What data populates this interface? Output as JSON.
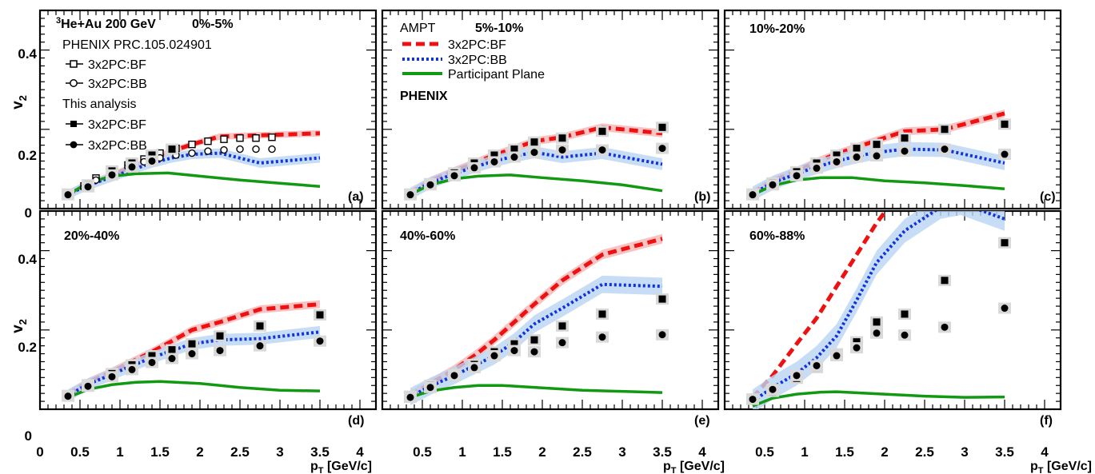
{
  "figure": {
    "y_axis_label": "v",
    "y_axis_sub": "2",
    "x_axis_label": "p",
    "x_axis_sub": "T",
    "x_axis_unit": " [GeV/c]",
    "x_ticks": [
      "0",
      "0.5",
      "1",
      "1.5",
      "2",
      "2.5",
      "3",
      "3.5",
      "4"
    ],
    "y_ticks": [
      "0",
      "0.2",
      "0.4"
    ]
  },
  "legend": {
    "system_sup": "3",
    "system": "He+Au 200 GeV",
    "phenix_ref": "PHENIX PRC.105.024901",
    "phenix_bf": "3x2PC:BF",
    "phenix_bb": "3x2PC:BB",
    "analysis_title": "This analysis",
    "analysis_bf": "3x2PC:BF",
    "analysis_bb": "3x2PC:BB",
    "ampt_title": "AMPT",
    "ampt_bf": "3x2PC:BF",
    "ampt_bb": "3x2PC:BB",
    "ampt_pp": "Participant Plane",
    "phenix_label": "PHENIX"
  },
  "colors": {
    "bf": "#ee1111",
    "bb": "#1133dd",
    "pp": "#119911",
    "bf_band": "#f6b4b4",
    "bb_band": "#b9d4f2",
    "syst": "#d9d9d9"
  },
  "chart_data": [
    {
      "type": "line",
      "panel": "(a)",
      "centrality": "0%-5%",
      "xlim": [
        0,
        4.2
      ],
      "ylim": [
        0,
        0.5
      ],
      "series": [
        {
          "name": "AMPT 3x2PC:BF",
          "style": "dashed",
          "x": [
            0.35,
            0.5,
            0.65,
            0.9,
            1.15,
            1.4,
            1.65,
            1.9,
            2.25,
            2.75,
            3.5
          ],
          "y": [
            0.037,
            0.052,
            0.065,
            0.085,
            0.105,
            0.125,
            0.145,
            0.162,
            0.182,
            0.185,
            0.19
          ],
          "band": 0.008
        },
        {
          "name": "AMPT 3x2PC:BB",
          "style": "dotted",
          "x": [
            0.35,
            0.5,
            0.65,
            0.9,
            1.15,
            1.4,
            1.65,
            1.9,
            2.25,
            2.75,
            3.5
          ],
          "y": [
            0.035,
            0.05,
            0.062,
            0.08,
            0.098,
            0.115,
            0.128,
            0.137,
            0.14,
            0.115,
            0.128
          ],
          "band": 0.012
        },
        {
          "name": "AMPT Participant Plane",
          "style": "solid",
          "x": [
            0.35,
            0.6,
            0.9,
            1.2,
            1.6,
            2.0,
            2.5,
            3.0,
            3.5
          ],
          "y": [
            0.035,
            0.065,
            0.082,
            0.088,
            0.09,
            0.082,
            0.072,
            0.064,
            0.056
          ]
        },
        {
          "name": "PHENIX 3x2PC:BF",
          "marker": "open-square",
          "x": [
            0.35,
            0.55,
            0.7,
            0.9,
            1.1,
            1.3,
            1.5,
            1.7,
            1.9,
            2.1,
            2.3,
            2.5,
            2.7,
            2.9
          ],
          "y": [
            0.037,
            0.057,
            0.077,
            0.095,
            0.11,
            0.125,
            0.14,
            0.152,
            0.162,
            0.17,
            0.175,
            0.178,
            0.178,
            0.18
          ]
        },
        {
          "name": "PHENIX 3x2PC:BB",
          "marker": "open-circle",
          "x": [
            0.35,
            0.55,
            0.7,
            0.9,
            1.1,
            1.3,
            1.5,
            1.7,
            1.9,
            2.1,
            2.3,
            2.5,
            2.7,
            2.9
          ],
          "y": [
            0.035,
            0.053,
            0.072,
            0.09,
            0.105,
            0.118,
            0.128,
            0.135,
            0.14,
            0.145,
            0.148,
            0.15,
            0.15,
            0.15
          ]
        },
        {
          "name": "This analysis 3x2PC:BF",
          "marker": "filled-square",
          "x": [
            0.35,
            0.6,
            0.9,
            1.15,
            1.4,
            1.65
          ],
          "y": [
            0.037,
            0.06,
            0.095,
            0.115,
            0.135,
            0.15
          ]
        },
        {
          "name": "This analysis 3x2PC:BB",
          "marker": "filled-circle",
          "x": [
            0.35,
            0.6,
            0.9,
            1.15,
            1.4
          ],
          "y": [
            0.035,
            0.055,
            0.085,
            0.105,
            0.12
          ]
        }
      ]
    },
    {
      "type": "line",
      "panel": "(b)",
      "centrality": "5%-10%",
      "xlim": [
        0,
        4.2
      ],
      "ylim": [
        0,
        0.5
      ],
      "series": [
        {
          "name": "AMPT 3x2PC:BF",
          "style": "dashed",
          "x": [
            0.35,
            0.6,
            0.9,
            1.15,
            1.4,
            1.65,
            1.9,
            2.25,
            2.75,
            3.5
          ],
          "y": [
            0.04,
            0.07,
            0.095,
            0.115,
            0.135,
            0.152,
            0.17,
            0.18,
            0.205,
            0.19
          ],
          "band": 0.01
        },
        {
          "name": "AMPT 3x2PC:BB",
          "style": "dotted",
          "x": [
            0.35,
            0.6,
            0.9,
            1.15,
            1.4,
            1.65,
            1.9,
            2.25,
            2.75,
            3.5
          ],
          "y": [
            0.038,
            0.065,
            0.088,
            0.105,
            0.12,
            0.132,
            0.142,
            0.13,
            0.14,
            0.112
          ],
          "band": 0.015
        },
        {
          "name": "AMPT Participant Plane",
          "style": "solid",
          "x": [
            0.35,
            0.6,
            0.9,
            1.2,
            1.6,
            2.0,
            2.5,
            3.0,
            3.5
          ],
          "y": [
            0.036,
            0.06,
            0.075,
            0.082,
            0.085,
            0.078,
            0.07,
            0.06,
            0.045
          ]
        },
        {
          "name": "This analysis 3x2PC:BF",
          "marker": "filled-square",
          "x": [
            0.35,
            0.6,
            0.9,
            1.15,
            1.4,
            1.65,
            1.9,
            2.25,
            2.75,
            3.5
          ],
          "y": [
            0.037,
            0.063,
            0.09,
            0.115,
            0.135,
            0.15,
            0.168,
            0.178,
            0.195,
            0.205
          ]
        },
        {
          "name": "This analysis 3x2PC:BB",
          "marker": "filled-circle",
          "x": [
            0.35,
            0.6,
            0.9,
            1.15,
            1.4,
            1.65,
            1.9,
            2.25,
            2.75,
            3.5
          ],
          "y": [
            0.035,
            0.06,
            0.083,
            0.103,
            0.118,
            0.13,
            0.142,
            0.148,
            0.148,
            0.152
          ]
        }
      ]
    },
    {
      "type": "line",
      "panel": "(c)",
      "centrality": "10%-20%",
      "xlim": [
        0,
        4.2
      ],
      "ylim": [
        0,
        0.5
      ],
      "series": [
        {
          "name": "AMPT 3x2PC:BF",
          "style": "dashed",
          "x": [
            0.35,
            0.6,
            0.9,
            1.15,
            1.4,
            1.65,
            1.9,
            2.25,
            2.75,
            3.5
          ],
          "y": [
            0.04,
            0.07,
            0.095,
            0.118,
            0.138,
            0.155,
            0.172,
            0.195,
            0.2,
            0.24
          ],
          "band": 0.01
        },
        {
          "name": "AMPT 3x2PC:BB",
          "style": "dotted",
          "x": [
            0.35,
            0.6,
            0.9,
            1.15,
            1.4,
            1.65,
            1.9,
            2.25,
            2.75,
            3.5
          ],
          "y": [
            0.038,
            0.065,
            0.088,
            0.105,
            0.12,
            0.132,
            0.142,
            0.15,
            0.148,
            0.115
          ],
          "band": 0.018
        },
        {
          "name": "AMPT Participant Plane",
          "style": "solid",
          "x": [
            0.35,
            0.6,
            0.9,
            1.2,
            1.6,
            2.0,
            2.5,
            3.0,
            3.5
          ],
          "y": [
            0.035,
            0.058,
            0.072,
            0.078,
            0.078,
            0.07,
            0.065,
            0.058,
            0.05
          ]
        },
        {
          "name": "This analysis 3x2PC:BF",
          "marker": "filled-square",
          "x": [
            0.35,
            0.6,
            0.9,
            1.15,
            1.4,
            1.65,
            1.9,
            2.25,
            2.75,
            3.5
          ],
          "y": [
            0.037,
            0.065,
            0.093,
            0.115,
            0.135,
            0.152,
            0.162,
            0.178,
            0.2,
            0.213
          ]
        },
        {
          "name": "This analysis 3x2PC:BB",
          "marker": "filled-circle",
          "x": [
            0.35,
            0.6,
            0.9,
            1.15,
            1.4,
            1.65,
            1.9,
            2.25,
            2.75,
            3.5
          ],
          "y": [
            0.035,
            0.06,
            0.083,
            0.102,
            0.118,
            0.13,
            0.133,
            0.145,
            0.15,
            0.137
          ]
        }
      ]
    },
    {
      "type": "line",
      "panel": "(d)",
      "centrality": "20%-40%",
      "xlim": [
        0,
        4.2
      ],
      "ylim": [
        0,
        0.5
      ],
      "series": [
        {
          "name": "AMPT 3x2PC:BF",
          "style": "dashed",
          "x": [
            0.35,
            0.6,
            0.9,
            1.15,
            1.4,
            1.65,
            1.9,
            2.25,
            2.75,
            3.5
          ],
          "y": [
            0.038,
            0.068,
            0.095,
            0.12,
            0.145,
            0.172,
            0.2,
            0.22,
            0.252,
            0.265
          ],
          "band": 0.01
        },
        {
          "name": "AMPT 3x2PC:BB",
          "style": "dotted",
          "x": [
            0.35,
            0.6,
            0.9,
            1.15,
            1.4,
            1.65,
            1.9,
            2.25,
            2.75,
            3.5
          ],
          "y": [
            0.035,
            0.063,
            0.088,
            0.11,
            0.13,
            0.148,
            0.165,
            0.175,
            0.178,
            0.195
          ],
          "band": 0.015
        },
        {
          "name": "AMPT Participant Plane",
          "style": "solid",
          "x": [
            0.35,
            0.6,
            0.9,
            1.2,
            1.5,
            2.0,
            2.5,
            3.0,
            3.5
          ],
          "y": [
            0.03,
            0.05,
            0.062,
            0.068,
            0.07,
            0.065,
            0.055,
            0.048,
            0.046
          ]
        },
        {
          "name": "This analysis 3x2PC:BF",
          "marker": "filled-square",
          "x": [
            0.35,
            0.6,
            0.9,
            1.15,
            1.4,
            1.65,
            1.9,
            2.25,
            2.75,
            3.5
          ],
          "y": [
            0.035,
            0.062,
            0.09,
            0.112,
            0.135,
            0.15,
            0.165,
            0.185,
            0.21,
            0.238
          ]
        },
        {
          "name": "This analysis 3x2PC:BB",
          "marker": "filled-circle",
          "x": [
            0.35,
            0.6,
            0.9,
            1.15,
            1.4,
            1.65,
            1.9,
            2.25,
            2.75,
            3.5
          ],
          "y": [
            0.033,
            0.058,
            0.082,
            0.1,
            0.118,
            0.128,
            0.14,
            0.148,
            0.16,
            0.172
          ]
        }
      ]
    },
    {
      "type": "line",
      "panel": "(e)",
      "centrality": "40%-60%",
      "xlim": [
        0,
        4.2
      ],
      "ylim": [
        0,
        0.5
      ],
      "series": [
        {
          "name": "AMPT 3x2PC:BF",
          "style": "dashed",
          "x": [
            0.35,
            0.6,
            0.9,
            1.15,
            1.4,
            1.65,
            1.9,
            2.25,
            2.75,
            3.5
          ],
          "y": [
            0.035,
            0.065,
            0.1,
            0.135,
            0.175,
            0.22,
            0.265,
            0.325,
            0.39,
            0.43
          ],
          "band": 0.012
        },
        {
          "name": "AMPT 3x2PC:BB",
          "style": "dotted",
          "x": [
            0.35,
            0.6,
            0.9,
            1.15,
            1.4,
            1.65,
            1.9,
            2.25,
            2.75,
            3.5
          ],
          "y": [
            0.032,
            0.058,
            0.085,
            0.11,
            0.135,
            0.17,
            0.215,
            0.255,
            0.315,
            0.31
          ],
          "band": 0.022
        },
        {
          "name": "AMPT Participant Plane",
          "style": "solid",
          "x": [
            0.35,
            0.6,
            0.9,
            1.2,
            1.5,
            2.0,
            2.5,
            3.0,
            3.5
          ],
          "y": [
            0.03,
            0.046,
            0.055,
            0.06,
            0.06,
            0.054,
            0.048,
            0.045,
            0.042
          ]
        },
        {
          "name": "This analysis 3x2PC:BF",
          "marker": "filled-square",
          "x": [
            0.35,
            0.6,
            0.9,
            1.15,
            1.4,
            1.65,
            1.9,
            2.25,
            2.75,
            3.5
          ],
          "y": [
            0.033,
            0.06,
            0.088,
            0.113,
            0.145,
            0.165,
            0.175,
            0.21,
            0.24,
            0.278
          ]
        },
        {
          "name": "This analysis 3x2PC:BB",
          "marker": "filled-circle",
          "x": [
            0.35,
            0.6,
            0.9,
            1.15,
            1.4,
            1.65,
            1.9,
            2.25,
            2.75,
            3.5
          ],
          "y": [
            0.03,
            0.055,
            0.085,
            0.105,
            0.135,
            0.148,
            0.145,
            0.168,
            0.182,
            0.188
          ]
        }
      ]
    },
    {
      "type": "line",
      "panel": "(f)",
      "centrality": "60%-88%",
      "xlim": [
        0,
        4.2
      ],
      "ylim": [
        0,
        0.5
      ],
      "series": [
        {
          "name": "AMPT 3x2PC:BF",
          "style": "dashed",
          "x": [
            0.35,
            0.6,
            0.9,
            1.15,
            1.4,
            1.65,
            1.9,
            2.05
          ],
          "y": [
            0.03,
            0.085,
            0.165,
            0.23,
            0.31,
            0.39,
            0.47,
            0.51
          ]
        },
        {
          "name": "AMPT 3x2PC:BB",
          "style": "dotted",
          "x": [
            0.35,
            0.6,
            0.9,
            1.15,
            1.4,
            1.65,
            1.9,
            2.25,
            2.7,
            2.95,
            3.5
          ],
          "y": [
            0.02,
            0.055,
            0.09,
            0.13,
            0.185,
            0.275,
            0.37,
            0.45,
            0.51,
            0.52,
            0.48
          ],
          "band": 0.03
        },
        {
          "name": "AMPT Participant Plane",
          "style": "solid",
          "x": [
            0.35,
            0.6,
            0.9,
            1.2,
            1.4,
            2.0,
            2.5,
            3.0,
            3.5
          ],
          "y": [
            0.008,
            0.028,
            0.038,
            0.043,
            0.044,
            0.038,
            0.033,
            0.03,
            0.031
          ]
        },
        {
          "name": "This analysis 3x2PC:BF",
          "marker": "filled-square",
          "x": [
            0.35,
            0.6,
            0.9,
            1.15,
            1.4,
            1.65,
            1.9,
            2.25,
            2.75,
            3.5
          ],
          "y": [
            0.026,
            0.045,
            0.078,
            0.105,
            0.14,
            0.17,
            0.22,
            0.24,
            0.325,
            0.42
          ]
        },
        {
          "name": "This analysis 3x2PC:BB",
          "marker": "filled-circle",
          "x": [
            0.35,
            0.6,
            0.9,
            1.15,
            1.4,
            1.65,
            1.9,
            2.25,
            2.75,
            3.5
          ],
          "y": [
            0.025,
            0.05,
            0.085,
            0.11,
            0.135,
            0.155,
            0.192,
            0.187,
            0.207,
            0.255
          ]
        }
      ]
    }
  ]
}
